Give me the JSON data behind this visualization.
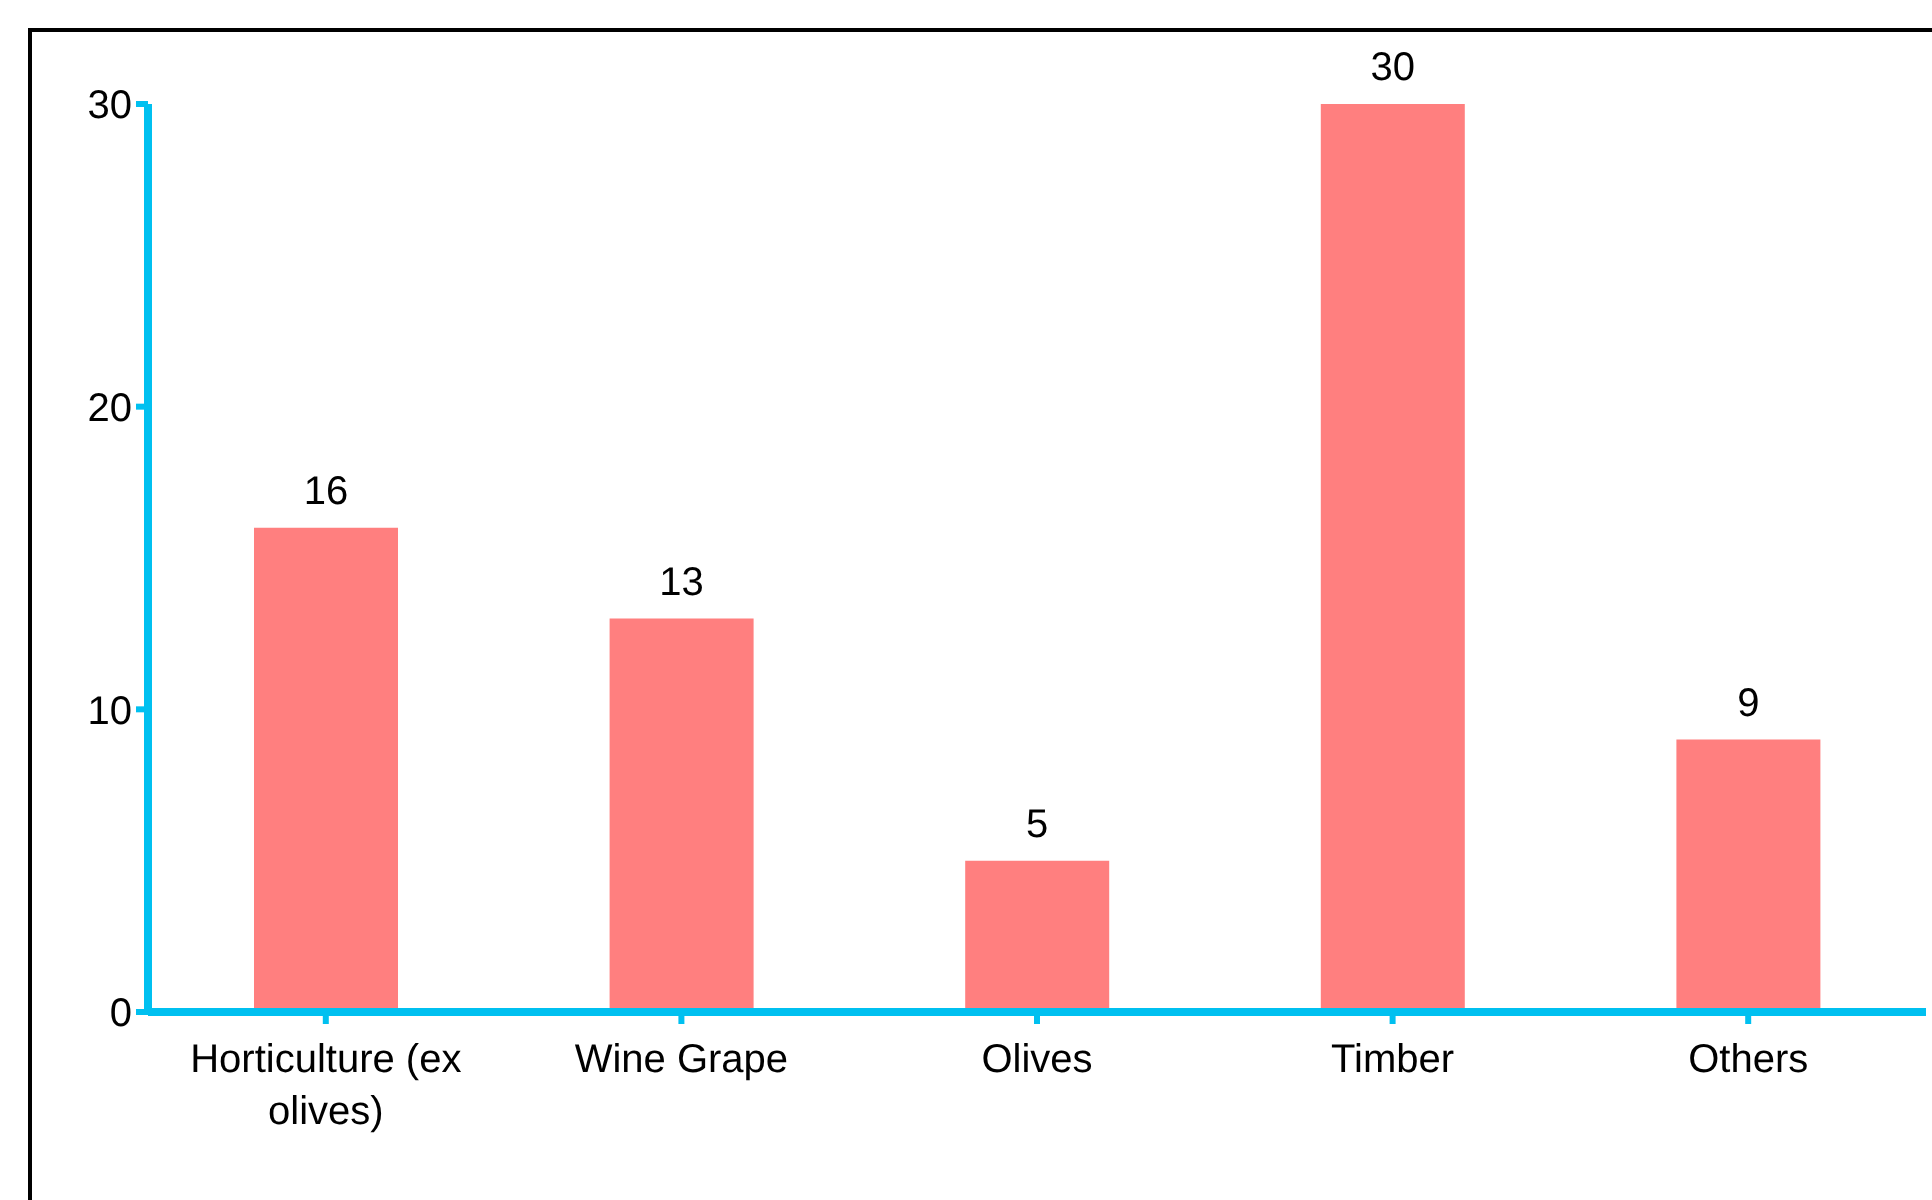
{
  "chart_data": {
    "type": "bar",
    "categories": [
      "Horticulture (ex olives)",
      "Wine Grape",
      "Olives",
      "Timber",
      "Others"
    ],
    "values": [
      16,
      13,
      5,
      30,
      9
    ],
    "color": "#ff7f7f",
    "ylim": [
      0,
      30
    ],
    "yticks": [
      0,
      10,
      20,
      30
    ],
    "grid": false,
    "data_labels": true
  }
}
